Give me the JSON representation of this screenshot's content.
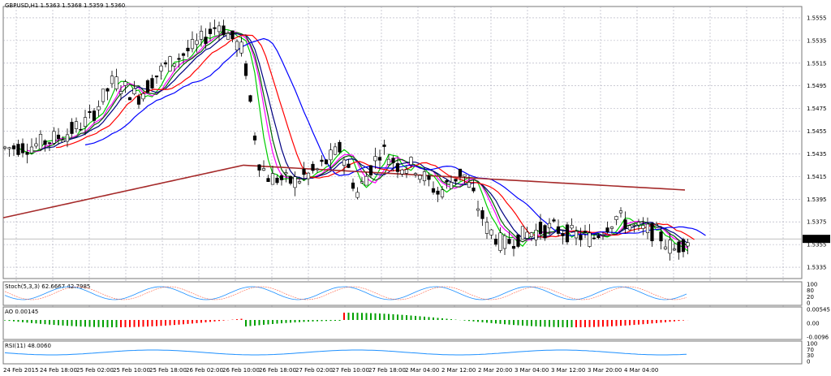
{
  "chart_data": {
    "type": "candlestick",
    "symbol_header": "GBPUSD,H1  1.5363 1.5368 1.5359 1.5360",
    "current_price": "1.5360",
    "y_ticks": [
      "1.5555",
      "1.5535",
      "1.5515",
      "1.5495",
      "1.5475",
      "1.5455",
      "1.5435",
      "1.5415",
      "1.5395",
      "1.5375",
      "1.5355",
      "1.5335"
    ],
    "x_ticks": [
      "24 Feb 2015",
      "24 Feb 18:00",
      "25 Feb 02:00",
      "25 Feb 10:00",
      "25 Feb 18:00",
      "26 Feb 02:00",
      "26 Feb 10:00",
      "26 Feb 18:00",
      "27 Feb 02:00",
      "27 Feb 10:00",
      "27 Feb 18:00",
      "2 Mar 04:00",
      "2 Mar 12:00",
      "2 Mar 20:00",
      "3 Mar 04:00",
      "3 Mar 12:00",
      "3 Mar 20:00",
      "4 Mar 04:00"
    ],
    "ylim": [
      1.5325,
      1.5565
    ],
    "grid": true,
    "ma_colors": [
      "#0000ff",
      "#ff0000",
      "#000080",
      "#00cc00",
      "#ff00ff",
      "#006400",
      "#a52a2a"
    ],
    "indicators": [
      {
        "header": "Stoch(5,3,3) 62.6667 42.7985",
        "ticks": [
          "100",
          "80",
          "20",
          "0"
        ]
      },
      {
        "header": "AO 0.00145",
        "ticks": [
          "0.00545",
          "0.00",
          "-0.0096"
        ]
      },
      {
        "header": "RSI(11) 48.0060",
        "ticks": [
          "100",
          "70",
          "30",
          "0"
        ]
      }
    ]
  }
}
